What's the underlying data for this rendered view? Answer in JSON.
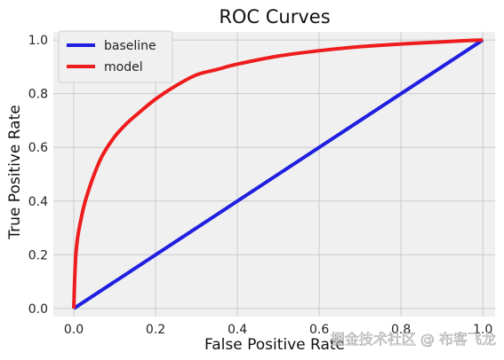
{
  "chart_data": {
    "type": "line",
    "title": "ROC Curves",
    "xlabel": "False Positive Rate",
    "ylabel": "True Positive Rate",
    "xlim": [
      -0.05,
      1.03
    ],
    "ylim": [
      -0.03,
      1.03
    ],
    "xticks": [
      0.0,
      0.2,
      0.4,
      0.6,
      0.8,
      1.0
    ],
    "yticks": [
      0.0,
      0.2,
      0.4,
      0.6,
      0.8,
      1.0
    ],
    "xtick_labels": [
      "0.0",
      "0.2",
      "0.4",
      "0.6",
      "0.8",
      "1.0"
    ],
    "ytick_labels": [
      "0.0",
      "0.2",
      "0.4",
      "0.6",
      "0.8",
      "1.0"
    ],
    "grid": true,
    "legend_position": "top-left",
    "background_color": "#f0f0f0",
    "series": [
      {
        "name": "baseline",
        "color": "#1f1fe0",
        "x": [
          0.0,
          1.0
        ],
        "y": [
          0.0,
          1.0
        ]
      },
      {
        "name": "model",
        "color": "#ee1c1c",
        "x": [
          0.0,
          0.002,
          0.005,
          0.01,
          0.02,
          0.03,
          0.05,
          0.07,
          0.1,
          0.13,
          0.16,
          0.2,
          0.25,
          0.3,
          0.35,
          0.4,
          0.5,
          0.6,
          0.7,
          0.8,
          0.9,
          0.95,
          1.0
        ],
        "y": [
          0.0,
          0.1,
          0.2,
          0.27,
          0.35,
          0.41,
          0.5,
          0.57,
          0.64,
          0.69,
          0.73,
          0.78,
          0.83,
          0.87,
          0.89,
          0.91,
          0.94,
          0.96,
          0.975,
          0.985,
          0.993,
          0.997,
          1.0
        ]
      }
    ]
  },
  "watermark": {
    "text": "掘金技术社区 @ 布客飞龙"
  }
}
